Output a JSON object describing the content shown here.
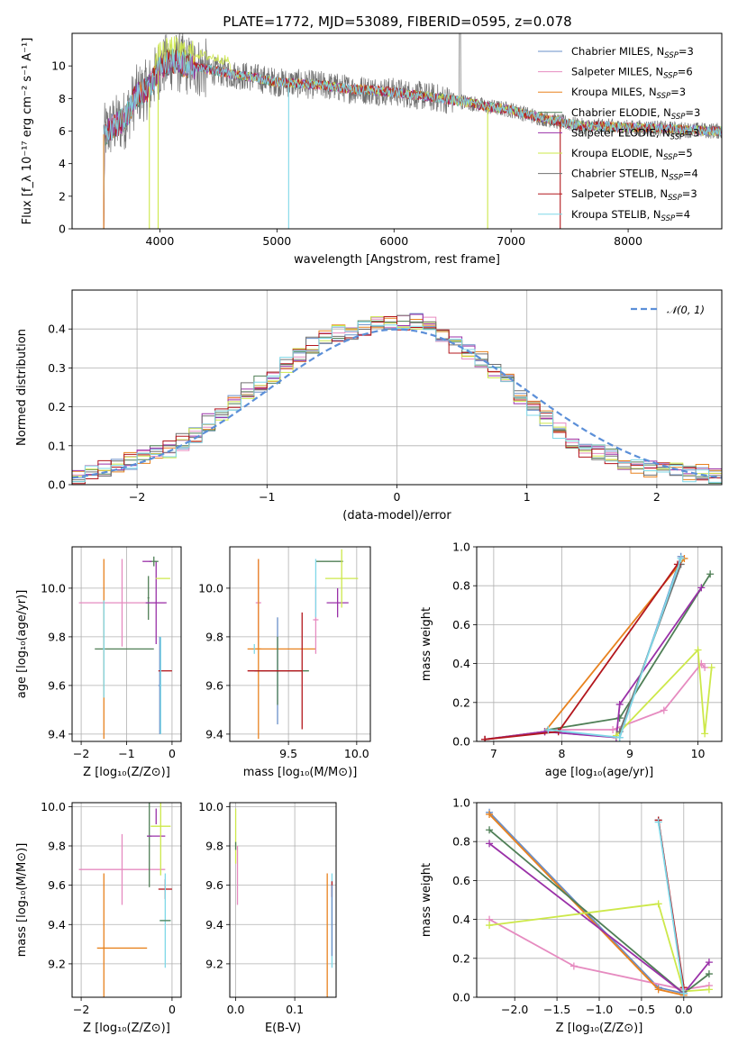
{
  "figure": {
    "title": "PLATE=1772, MJD=53089, FIBERID=0595, z=0.078"
  },
  "colors": {
    "series": [
      "#6a8fc8",
      "#e68bc0",
      "#e8821f",
      "#4f7f56",
      "#9a31a8",
      "#cde84a",
      "#707070",
      "#b3171d",
      "#7fd8e8"
    ],
    "normal": "#5b8fd8",
    "grid": "#b0b0b0",
    "axis": "#000000"
  },
  "chart_data": [
    {
      "id": "spectrum",
      "type": "line",
      "title": "PLATE=1772, MJD=53089, FIBERID=0595, z=0.078",
      "xlabel": "wavelength [Angstrom, rest frame]",
      "ylabel": "Flux [f_λ 10⁻¹⁷ erg cm⁻² s⁻¹ A⁻¹]",
      "xlim": [
        3250,
        8800
      ],
      "ylim": [
        0,
        12
      ],
      "xticks": [
        4000,
        5000,
        6000,
        7000,
        8000
      ],
      "yticks": [
        0,
        2,
        4,
        6,
        8,
        10
      ],
      "grid": false,
      "legend_position": "top-right",
      "legend": [
        "Chabrier MILES, N_SSP=3",
        "Salpeter MILES, N_SSP=6",
        "Kroupa MILES, N_SSP=3",
        "Chabrier ELODIE, N_SSP=3",
        "Salpeter ELODIE, N_SSP=3",
        "Kroupa ELODIE, N_SSP=5",
        "Chabrier STELIB, N_SSP=4",
        "Salpeter STELIB, N_SSP=3",
        "Kroupa STELIB, N_SSP=4"
      ],
      "continuum": {
        "x": [
          3520,
          3600,
          3700,
          3800,
          3900,
          4000,
          4100,
          4200,
          4400,
          4600,
          4800,
          5000,
          5200,
          5400,
          5600,
          5800,
          6000,
          6200,
          6400,
          6600,
          6800,
          7000,
          7200,
          7400,
          7600,
          7800,
          8000,
          8200,
          8400,
          8800
        ],
        "y": [
          5.8,
          6.3,
          6.7,
          8.2,
          8.6,
          9.9,
          10.3,
          10.1,
          9.8,
          9.5,
          9.3,
          9.0,
          8.9,
          8.8,
          8.6,
          8.5,
          8.4,
          8.2,
          8.0,
          7.8,
          7.5,
          7.3,
          6.9,
          6.6,
          6.3,
          6.3,
          6.2,
          6.2,
          6.1,
          6.0
        ]
      }
    },
    {
      "id": "residuals",
      "type": "histogram",
      "xlabel": "(data-model)/error",
      "ylabel": "Normed distribution",
      "xlim": [
        -2.5,
        2.5
      ],
      "ylim": [
        0,
        0.5
      ],
      "xticks": [
        -2,
        -1,
        0,
        1,
        2
      ],
      "yticks": [
        0.0,
        0.1,
        0.2,
        0.3,
        0.4
      ],
      "grid": true,
      "legend_position": "top-right",
      "legend": [
        "𝒩(0, 1)"
      ],
      "bins": [
        -2.5,
        2.5,
        50
      ],
      "hist_mean": [
        0.02,
        0.03,
        0.04,
        0.05,
        0.06,
        0.07,
        0.08,
        0.09,
        0.11,
        0.13,
        0.16,
        0.18,
        0.21,
        0.24,
        0.26,
        0.28,
        0.31,
        0.33,
        0.36,
        0.38,
        0.39,
        0.39,
        0.4,
        0.41,
        0.42,
        0.42,
        0.42,
        0.41,
        0.38,
        0.36,
        0.34,
        0.32,
        0.29,
        0.27,
        0.23,
        0.2,
        0.17,
        0.14,
        0.11,
        0.09,
        0.08,
        0.07,
        0.06,
        0.05,
        0.04,
        0.04,
        0.04,
        0.03,
        0.03,
        0.02
      ]
    },
    {
      "id": "age-vs-Z",
      "type": "scatter",
      "xlabel": "Z [log₁₀(Z/Z⊙)]",
      "ylabel": "age  [log₁₀(age/yr)]",
      "xlim": [
        -2.2,
        0.2
      ],
      "ylim": [
        9.37,
        10.17
      ],
      "xticks": [
        -2,
        -1,
        0
      ],
      "yticks": [
        9.4,
        9.6,
        9.8,
        10.0
      ],
      "grid": true,
      "points": [
        {
          "x": -0.25,
          "y": 9.6,
          "xerr": 0.03,
          "yerr": 0.18
        },
        {
          "x": -1.12,
          "y": 9.94,
          "xerr": 0.95,
          "yerr": 0.18
        },
        {
          "x": -1.5,
          "y": 9.75,
          "xerr": 0.02,
          "yerr": 0.37
        },
        {
          "x": -0.5,
          "y": 10.0,
          "xerr": 0.05,
          "yerr": 0.12
        },
        {
          "x": -0.35,
          "y": 9.94,
          "xerr": 0.2,
          "yerr": 0.18
        },
        {
          "x": -0.23,
          "y": 10.04,
          "xerr": 0.2,
          "yerr": 0.12
        },
        {
          "x": -1.1,
          "y": 9.75,
          "xerr": 0.7,
          "yerr": 0.02
        },
        {
          "x": -0.15,
          "y": 9.66,
          "xerr": 0.15,
          "yerr": 0.01
        },
        {
          "x": -0.25,
          "y": 9.6,
          "xerr": 0.02,
          "yerr": 0.15
        }
      ]
    },
    {
      "id": "age-vs-mass",
      "type": "scatter",
      "xlabel": "mass [log₁₀(M/M⊙)]",
      "ylabel": "",
      "xlim": [
        9.07,
        10.1
      ],
      "ylim": [
        9.37,
        10.17
      ],
      "xticks": [
        9.5,
        10.0
      ],
      "yticks": [
        9.4,
        9.6,
        9.8,
        10.0
      ],
      "grid": true
    },
    {
      "id": "mass-weight-vs-age",
      "type": "line",
      "xlabel": "age  [log₁₀(age/yr)]",
      "ylabel": "mass weight",
      "xlim": [
        6.75,
        10.35
      ],
      "ylim": [
        0,
        1
      ],
      "xticks": [
        7,
        8,
        9,
        10
      ],
      "yticks": [
        0.0,
        0.2,
        0.4,
        0.6,
        0.8,
        1.0
      ],
      "grid": true,
      "series": [
        {
          "x": [
            6.87,
            7.75,
            8.85,
            9.75
          ],
          "y": [
            0.01,
            0.05,
            0.02,
            0.95
          ]
        },
        {
          "x": [
            7.8,
            8.75,
            9.5,
            10.05,
            10.1
          ],
          "y": [
            0.06,
            0.06,
            0.16,
            0.4,
            0.38
          ]
        },
        {
          "x": [
            6.87,
            7.75,
            9.8
          ],
          "y": [
            0.01,
            0.05,
            0.94
          ]
        },
        {
          "x": [
            7.8,
            8.85,
            10.18
          ],
          "y": [
            0.06,
            0.12,
            0.86
          ]
        },
        {
          "x": [
            6.87,
            7.75,
            8.8,
            8.85,
            10.05
          ],
          "y": [
            0.01,
            0.05,
            0.02,
            0.19,
            0.79
          ]
        },
        {
          "x": [
            8.8,
            10.0,
            10.1,
            10.2
          ],
          "y": [
            0.03,
            0.47,
            0.04,
            0.38
          ]
        },
        {
          "x": [
            8.85,
            9.75
          ],
          "y": [
            0.05,
            0.91
          ]
        },
        {
          "x": [
            6.87,
            7.95,
            9.7
          ],
          "y": [
            0.01,
            0.05,
            0.91
          ]
        },
        {
          "x": [
            7.8,
            8.85,
            9.75
          ],
          "y": [
            0.06,
            0.02,
            0.94
          ]
        }
      ]
    },
    {
      "id": "mass-vs-Z",
      "type": "scatter",
      "xlabel": "Z [log₁₀(Z/Z⊙)]",
      "ylabel": "mass [log₁₀(M/M⊙)]",
      "xlim": [
        -2.2,
        0.2
      ],
      "ylim": [
        9.03,
        10.02
      ],
      "xticks": [
        -2,
        0
      ],
      "yticks": [
        9.2,
        9.4,
        9.6,
        9.8,
        10.0
      ],
      "grid": true
    },
    {
      "id": "mass-vs-ebv",
      "type": "scatter",
      "xlabel": "E(B-V)",
      "ylabel": "",
      "xlim": [
        -0.01,
        0.17
      ],
      "ylim": [
        9.03,
        10.02
      ],
      "xticks": [
        0.0,
        0.1
      ],
      "yticks": [
        9.2,
        9.4,
        9.6,
        9.8,
        10.0
      ],
      "grid": true
    },
    {
      "id": "mass-weight-vs-Z",
      "type": "line",
      "xlabel": "Z [log₁₀(Z/Z⊙)]",
      "ylabel": "mass weight",
      "xlim": [
        -2.45,
        0.45
      ],
      "ylim": [
        0,
        1
      ],
      "xticks": [
        -2.0,
        -1.5,
        -1.0,
        -0.5,
        0.0
      ],
      "yticks": [
        0.0,
        0.2,
        0.4,
        0.6,
        0.8,
        1.0
      ],
      "grid": true,
      "series": [
        {
          "x": [
            -2.3,
            -0.3,
            0.0
          ],
          "y": [
            0.95,
            0.05,
            0.02
          ]
        },
        {
          "x": [
            -2.3,
            -1.3,
            0.0,
            0.3
          ],
          "y": [
            0.4,
            0.16,
            0.04,
            0.06
          ]
        },
        {
          "x": [
            -2.3,
            -0.3,
            0.0
          ],
          "y": [
            0.94,
            0.04,
            0.01
          ]
        },
        {
          "x": [
            -2.3,
            0.0,
            0.3
          ],
          "y": [
            0.86,
            0.02,
            0.12
          ]
        },
        {
          "x": [
            -2.3,
            0.0,
            0.3
          ],
          "y": [
            0.79,
            0.02,
            0.18
          ]
        },
        {
          "x": [
            -2.3,
            -0.3,
            0.0,
            0.3
          ],
          "y": [
            0.37,
            0.48,
            0.03,
            0.04
          ]
        },
        {
          "x": [
            -0.3,
            0.0
          ],
          "y": [
            0.91,
            0.03
          ]
        },
        {
          "x": [
            -0.3,
            0.0
          ],
          "y": [
            0.91,
            0.05
          ]
        },
        {
          "x": [
            -0.3,
            0.0
          ],
          "y": [
            0.9,
            0.02
          ]
        }
      ]
    }
  ]
}
